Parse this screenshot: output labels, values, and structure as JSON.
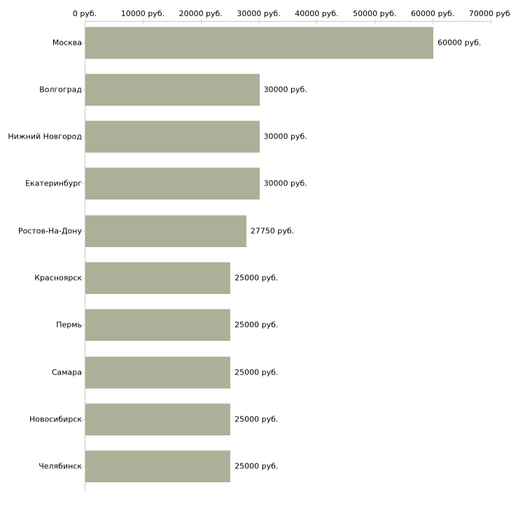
{
  "chart_data": {
    "type": "bar",
    "orientation": "horizontal",
    "title": "",
    "xlabel": "",
    "ylabel": "",
    "categories": [
      "Москва",
      "Волгоград",
      "Нижний Новгород",
      "Екатеринбург",
      "Ростов-На-Дону",
      "Красноярск",
      "Пермь",
      "Самара",
      "Новосибирск",
      "Челябинск"
    ],
    "values": [
      60000,
      30000,
      30000,
      30000,
      27750,
      25000,
      25000,
      25000,
      25000,
      25000
    ],
    "value_labels": [
      "60000 руб.",
      "30000 руб.",
      "30000 руб.",
      "30000 руб.",
      "27750 руб.",
      "25000 руб.",
      "25000 руб.",
      "25000 руб.",
      "25000 руб.",
      "25000 руб."
    ],
    "x_ticks": [
      0,
      10000,
      20000,
      30000,
      40000,
      50000,
      60000,
      70000
    ],
    "x_tick_labels": [
      "0 руб.",
      "10000 руб.",
      "20000 руб.",
      "30000 руб.",
      "40000 руб.",
      "50000 руб.",
      "60000 руб.",
      "70000 руб."
    ],
    "xlim": [
      0,
      70000
    ],
    "axis_position": "top",
    "grid": false,
    "legend": false,
    "colors": {
      "bar_fill": "#abb199",
      "bar_top_edge": "#dadcca",
      "axis_line": "#c8c8c8",
      "tick_mark": "#d8dbb2",
      "text": "#000000",
      "background": "#ffffff"
    }
  }
}
